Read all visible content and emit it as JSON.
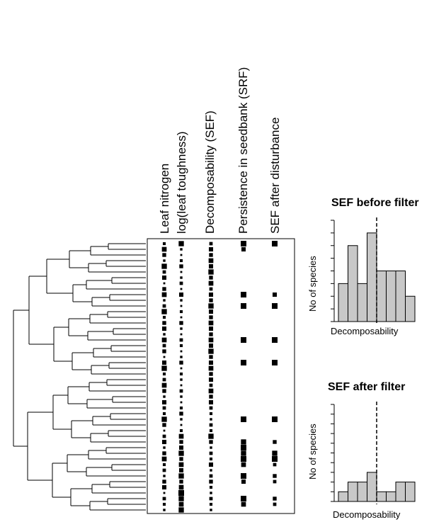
{
  "traits": {
    "columns": [
      {
        "label": "Leaf nitrogen"
      },
      {
        "label": "log(leaf toughness)"
      },
      {
        "label": "Decomposability (SEF)"
      },
      {
        "label": "Persistence in seedbank (SRF)"
      },
      {
        "label": "SEF after disturbance"
      }
    ]
  },
  "chart_data": [
    {
      "type": "dendrogram-trait-matrix",
      "leaf_count": 48,
      "columns": [
        "Leaf nitrogen",
        "log(leaf toughness)",
        "Decomposability (SEF)",
        "Persistence in seedbank (SRF)",
        "SEF after disturbance"
      ],
      "values": {
        "Leaf nitrogen": [
          0.4,
          0.8,
          0.6,
          0.3,
          0.9,
          0.5,
          0.7,
          0.2,
          0.6,
          0.8,
          0.3,
          0.5,
          0.9,
          0.4,
          0.6,
          0.7,
          0.3,
          0.8,
          0.5,
          0.6,
          0.2,
          0.7,
          0.9,
          0.4,
          0.5,
          0.8,
          0.6,
          0.3,
          0.7,
          0.5,
          0.4,
          0.9,
          0.6,
          0.2,
          0.5,
          0.7,
          0.3,
          0.6,
          0.8,
          0.4,
          0.5,
          0.3,
          0.6,
          0.7,
          0.2,
          0.5,
          0.4,
          0.3
        ],
        "log(leaf toughness)": [
          0.9,
          0.3,
          0.2,
          0.4,
          0.6,
          0.2,
          0.3,
          0.5,
          0.2,
          0.7,
          0.3,
          0.2,
          0.4,
          0.2,
          0.6,
          0.3,
          0.2,
          0.5,
          0.4,
          0.2,
          0.3,
          0.6,
          0.2,
          0.4,
          0.3,
          0.2,
          0.5,
          0.3,
          0.2,
          0.4,
          0.6,
          0.3,
          0.2,
          0.4,
          0.8,
          0.6,
          0.7,
          0.9,
          0.6,
          0.8,
          0.7,
          0.9,
          0.6,
          0.8,
          1.0,
          0.9,
          0.8,
          0.9
        ],
        "Decomposability (SEF)": [
          0.5,
          0.7,
          0.6,
          0.8,
          0.7,
          0.9,
          0.6,
          0.8,
          0.5,
          0.7,
          0.6,
          0.9,
          0.7,
          0.6,
          0.8,
          0.7,
          0.6,
          0.8,
          0.7,
          0.9,
          0.6,
          0.7,
          0.8,
          0.6,
          0.7,
          0.5,
          0.8,
          0.6,
          0.7,
          0.5,
          0.4,
          0.3,
          0.5,
          0.4,
          0.9,
          0.6,
          0.3,
          0.5,
          0.4,
          0.7,
          0.3,
          0.5,
          0.6,
          0.4,
          0.3,
          0.5,
          0.4,
          0.3
        ],
        "Persistence in seedbank (SRF)": [
          1.0,
          0.7,
          0,
          0,
          0,
          0,
          0,
          0,
          0,
          1.0,
          0,
          1.0,
          0,
          0,
          0,
          0,
          0,
          1.0,
          0,
          0,
          0,
          1.0,
          0,
          0,
          0,
          0,
          0,
          0,
          0,
          0,
          0,
          1.0,
          0,
          0,
          0,
          0.9,
          1.0,
          0.9,
          1.0,
          0.8,
          0,
          1.0,
          0.7,
          0,
          0,
          1.0,
          0.8,
          0
        ],
        "SEF after disturbance": [
          1.0,
          0,
          0,
          0,
          0,
          0,
          0,
          0,
          0,
          0.7,
          0,
          1.0,
          0,
          0,
          0,
          0,
          0,
          1.0,
          0,
          0,
          0,
          1.0,
          0,
          0,
          0,
          0,
          0,
          0,
          0,
          0,
          0,
          1.0,
          0,
          0,
          0,
          0.6,
          0,
          0.9,
          1.0,
          0.5,
          0,
          0.6,
          0.5,
          0,
          0,
          0.6,
          0.5,
          0
        ]
      }
    },
    {
      "type": "bar",
      "title": "SEF before filter",
      "xlabel": "Decomposability",
      "ylabel": "No of species",
      "values": [
        3,
        6,
        3,
        7,
        4,
        4,
        4,
        2
      ],
      "ylim": [
        0,
        8
      ],
      "dashed_line_after_bar": 4,
      "bar_color": "#c8c8c8"
    },
    {
      "type": "bar",
      "title": "SEF after filter",
      "xlabel": "Decomposability",
      "ylabel": "No of species",
      "values": [
        1,
        2,
        2,
        3,
        1,
        1,
        2,
        2
      ],
      "ylim": [
        0,
        10
      ],
      "dashed_line_after_bar": 4,
      "bar_color": "#c8c8c8"
    }
  ]
}
